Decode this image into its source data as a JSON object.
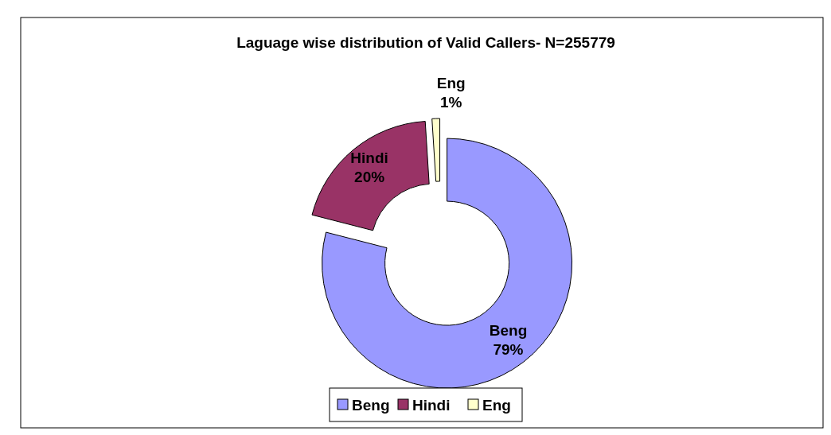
{
  "chart_data": {
    "type": "donut",
    "title": "Laguage wise distribution of Valid Callers- N=255779",
    "categories": [
      "Beng",
      "Hindi",
      "Eng"
    ],
    "values": [
      79,
      20,
      1
    ],
    "colors": [
      "#9999ff",
      "#993366",
      "#ffffcc"
    ],
    "value_labels": [
      "79%",
      "20%",
      "1%"
    ],
    "legend": "bottom"
  }
}
